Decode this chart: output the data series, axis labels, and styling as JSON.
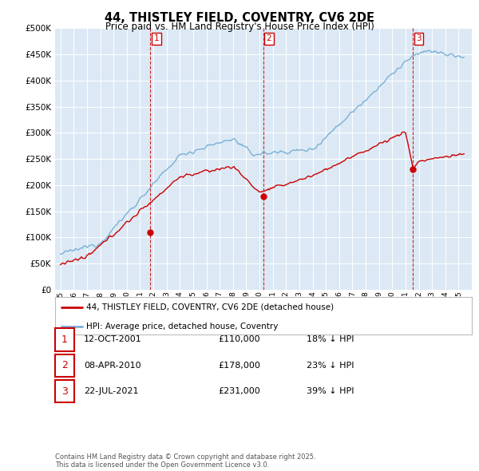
{
  "title": "44, THISTLEY FIELD, COVENTRY, CV6 2DE",
  "subtitle": "Price paid vs. HM Land Registry's House Price Index (HPI)",
  "legend_line1": "44, THISTLEY FIELD, COVENTRY, CV6 2DE (detached house)",
  "legend_line2": "HPI: Average price, detached house, Coventry",
  "footer": "Contains HM Land Registry data © Crown copyright and database right 2025.\nThis data is licensed under the Open Government Licence v3.0.",
  "sale_color": "#cc0000",
  "hpi_color": "#7ab0d4",
  "vline_color": "#cc0000",
  "background_color": "#dce9f5",
  "ylim": [
    0,
    500000
  ],
  "yticks": [
    0,
    50000,
    100000,
    150000,
    200000,
    250000,
    300000,
    350000,
    400000,
    450000,
    500000
  ],
  "sales": [
    {
      "date_num": 2001.78,
      "price": 110000,
      "label": "1"
    },
    {
      "date_num": 2010.27,
      "price": 178000,
      "label": "2"
    },
    {
      "date_num": 2021.55,
      "price": 231000,
      "label": "3"
    }
  ],
  "table_rows": [
    {
      "num": "1",
      "date": "12-OCT-2001",
      "price": "£110,000",
      "hpi_diff": "18% ↓ HPI"
    },
    {
      "num": "2",
      "date": "08-APR-2010",
      "price": "£178,000",
      "hpi_diff": "23% ↓ HPI"
    },
    {
      "num": "3",
      "date": "22-JUL-2021",
      "price": "£231,000",
      "hpi_diff": "39% ↓ HPI"
    }
  ]
}
